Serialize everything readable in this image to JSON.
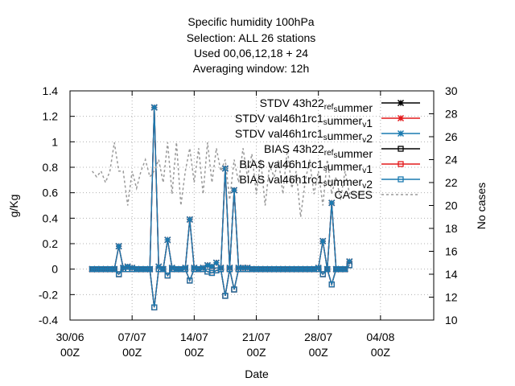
{
  "chart_data": {
    "type": "line",
    "title_lines": [
      "Specific humidity 100hPa",
      "Selection: ALL      26 stations",
      "Used  00,06,12,18  + 24",
      "Averaging window: 12h"
    ],
    "xlabel": "Date",
    "ylabel": "g/Kg",
    "y2label": "No cases",
    "xlim": [
      0,
      41
    ],
    "ylim": [
      -0.4,
      1.4
    ],
    "y2lim": [
      10,
      30
    ],
    "grid": true,
    "legend_position": "top-right",
    "x_ticks": [
      {
        "x": 0,
        "top": "30/06",
        "bottom": "00Z"
      },
      {
        "x": 7,
        "top": "07/07",
        "bottom": "00Z"
      },
      {
        "x": 14,
        "top": "14/07",
        "bottom": "00Z"
      },
      {
        "x": 21,
        "top": "21/07",
        "bottom": "00Z"
      },
      {
        "x": 28,
        "top": "28/07",
        "bottom": "00Z"
      },
      {
        "x": 35,
        "top": "04/08",
        "bottom": "00Z"
      }
    ],
    "y_ticks": [
      "-0.4",
      "-0.2",
      "0",
      "0.2",
      "0.4",
      "0.6",
      "0.8",
      "1",
      "1.2",
      "1.4"
    ],
    "y2_ticks": [
      "10",
      "12",
      "14",
      "16",
      "18",
      "20",
      "22",
      "24",
      "26",
      "28",
      "30"
    ],
    "series": [
      {
        "name": "STDV 43h22_ref_summer",
        "legend_parts": [
          [
            "STDV 43h22",
            ""
          ],
          [
            "ref",
            "sub"
          ],
          [
            "",
            ""
          ],
          [
            "s",
            "sub"
          ],
          [
            "ummer",
            ""
          ]
        ],
        "axis": "y1",
        "color": "#000000",
        "marker": "star",
        "dash": "",
        "x": [
          2.5,
          3,
          3.5,
          4,
          4.5,
          5,
          5.5,
          6,
          6.5,
          7,
          7.5,
          8,
          8.5,
          9,
          9.5,
          10,
          10.5,
          11,
          11.5,
          12,
          12.5,
          13,
          13.5,
          14,
          14.5,
          15,
          15.5,
          16,
          16.5,
          17,
          17.5,
          18,
          18.5,
          19,
          19.5,
          20,
          20.5,
          21,
          21.5,
          22,
          22.5,
          23,
          23.5,
          24,
          24.5,
          25,
          25.5,
          26,
          26.5,
          27,
          27.5,
          28,
          28.5,
          29,
          29.5,
          30,
          30.5,
          31,
          31.5
        ],
        "y": [
          0,
          0,
          0,
          0,
          0,
          0,
          0.18,
          0.01,
          0.02,
          0.01,
          0,
          0,
          0,
          0,
          1.27,
          0.02,
          0,
          0.23,
          0.01,
          0,
          0,
          0.01,
          0.39,
          0.01,
          0,
          0.01,
          0.03,
          0.02,
          0.05,
          0.01,
          0.79,
          0.01,
          0.62,
          0.01,
          0.01,
          0.01,
          0,
          0,
          0,
          0,
          0,
          0,
          0,
          0,
          0,
          0,
          0,
          0,
          0,
          0,
          0,
          0.01,
          0.22,
          0,
          0.52,
          0,
          0,
          0,
          0.06
        ]
      },
      {
        "name": "STDV val46h1rc1_summer_v1",
        "legend_parts": [
          [
            "STDV val46h1rc1",
            ""
          ],
          [
            "s",
            "sub"
          ],
          [
            "ummer",
            ""
          ],
          [
            "v",
            "sub"
          ],
          [
            "1",
            ""
          ]
        ],
        "axis": "y1",
        "color": "#e41a1c",
        "marker": "star",
        "dash": "",
        "x": [
          2.5,
          3,
          3.5,
          4,
          4.5,
          5,
          5.5,
          6,
          6.5,
          7,
          7.5,
          8,
          8.5,
          9,
          9.5,
          10,
          10.5,
          11,
          11.5,
          12,
          12.5,
          13,
          13.5,
          14,
          14.5,
          15,
          15.5,
          16,
          16.5,
          17,
          17.5,
          18,
          18.5,
          19,
          19.5,
          20,
          20.5,
          21,
          21.5,
          22,
          22.5,
          23,
          23.5,
          24,
          24.5,
          25,
          25.5,
          26,
          26.5,
          27,
          27.5,
          28,
          28.5,
          29,
          29.5,
          30,
          30.5,
          31,
          31.5
        ],
        "y": [
          0,
          0,
          0,
          0,
          0,
          0,
          0.18,
          0.01,
          0.02,
          0.01,
          0,
          0,
          0,
          0,
          1.27,
          0.02,
          0,
          0.23,
          0.01,
          0,
          0,
          0.01,
          0.39,
          0.01,
          0,
          0.01,
          0.03,
          0.02,
          0.05,
          0.01,
          0.79,
          0.01,
          0.62,
          0.01,
          0.01,
          0.01,
          0,
          0,
          0,
          0,
          0,
          0,
          0,
          0,
          0,
          0,
          0,
          0,
          0,
          0,
          0,
          0.01,
          0.22,
          0,
          0.52,
          0,
          0,
          0,
          0.06
        ]
      },
      {
        "name": "STDV val46h1rc1_summer_v2",
        "legend_parts": [
          [
            "STDV val46h1rc1",
            ""
          ],
          [
            "s",
            "sub"
          ],
          [
            "ummer",
            ""
          ],
          [
            "v",
            "sub"
          ],
          [
            "2",
            ""
          ]
        ],
        "axis": "y1",
        "color": "#1a7ab0",
        "marker": "star",
        "dash": "",
        "x": [
          2.5,
          3,
          3.5,
          4,
          4.5,
          5,
          5.5,
          6,
          6.5,
          7,
          7.5,
          8,
          8.5,
          9,
          9.5,
          10,
          10.5,
          11,
          11.5,
          12,
          12.5,
          13,
          13.5,
          14,
          14.5,
          15,
          15.5,
          16,
          16.5,
          17,
          17.5,
          18,
          18.5,
          19,
          19.5,
          20,
          20.5,
          21,
          21.5,
          22,
          22.5,
          23,
          23.5,
          24,
          24.5,
          25,
          25.5,
          26,
          26.5,
          27,
          27.5,
          28,
          28.5,
          29,
          29.5,
          30,
          30.5,
          31,
          31.5
        ],
        "y": [
          0,
          0,
          0,
          0,
          0,
          0,
          0.18,
          0.01,
          0.02,
          0.01,
          0,
          0,
          0,
          0,
          1.27,
          0.02,
          0,
          0.23,
          0.01,
          0,
          0,
          0.01,
          0.39,
          0.01,
          0,
          0.01,
          0.03,
          0.02,
          0.05,
          0.01,
          0.79,
          0.01,
          0.62,
          0.01,
          0.01,
          0.01,
          0,
          0,
          0,
          0,
          0,
          0,
          0,
          0,
          0,
          0,
          0,
          0,
          0,
          0,
          0,
          0.01,
          0.22,
          0,
          0.52,
          0,
          0,
          0,
          0.06
        ]
      },
      {
        "name": "BIAS 43h22_ref_summer",
        "legend_parts": [
          [
            "BIAS 43h22",
            ""
          ],
          [
            "ref",
            "sub"
          ],
          [
            "",
            ""
          ],
          [
            "s",
            "sub"
          ],
          [
            "ummer",
            ""
          ]
        ],
        "axis": "y1",
        "color": "#000000",
        "marker": "square",
        "dash": "",
        "x": [
          2.5,
          3,
          3.5,
          4,
          4.5,
          5,
          5.5,
          6,
          6.5,
          7,
          7.5,
          8,
          8.5,
          9,
          9.5,
          10,
          10.5,
          11,
          11.5,
          12,
          12.5,
          13,
          13.5,
          14,
          14.5,
          15,
          15.5,
          16,
          16.5,
          17,
          17.5,
          18,
          18.5,
          19,
          19.5,
          20,
          20.5,
          21,
          21.5,
          22,
          22.5,
          23,
          23.5,
          24,
          24.5,
          25,
          25.5,
          26,
          26.5,
          27,
          27.5,
          28,
          28.5,
          29,
          29.5,
          30,
          30.5,
          31,
          31.5
        ],
        "y": [
          0,
          0,
          0,
          0,
          0,
          0,
          -0.04,
          0,
          0,
          0,
          0,
          0,
          0,
          0,
          -0.3,
          0,
          0,
          -0.05,
          0,
          0,
          0,
          0,
          -0.09,
          0,
          0,
          0,
          -0.02,
          -0.03,
          -0.01,
          0,
          -0.21,
          0,
          -0.16,
          0,
          0,
          0,
          0,
          0,
          0,
          0,
          0,
          0,
          0,
          0,
          0,
          0,
          0,
          0,
          0,
          0,
          0,
          0,
          -0.04,
          0,
          -0.12,
          0,
          0,
          0,
          0.03
        ]
      },
      {
        "name": "BIAS val46h1rc1_summer_v1",
        "legend_parts": [
          [
            "BIAS val46h1rc1",
            ""
          ],
          [
            "s",
            "sub"
          ],
          [
            "ummer",
            ""
          ],
          [
            "v",
            "sub"
          ],
          [
            "1",
            ""
          ]
        ],
        "axis": "y1",
        "color": "#e41a1c",
        "marker": "square",
        "dash": "",
        "x": [
          2.5,
          3,
          3.5,
          4,
          4.5,
          5,
          5.5,
          6,
          6.5,
          7,
          7.5,
          8,
          8.5,
          9,
          9.5,
          10,
          10.5,
          11,
          11.5,
          12,
          12.5,
          13,
          13.5,
          14,
          14.5,
          15,
          15.5,
          16,
          16.5,
          17,
          17.5,
          18,
          18.5,
          19,
          19.5,
          20,
          20.5,
          21,
          21.5,
          22,
          22.5,
          23,
          23.5,
          24,
          24.5,
          25,
          25.5,
          26,
          26.5,
          27,
          27.5,
          28,
          28.5,
          29,
          29.5,
          30,
          30.5,
          31,
          31.5
        ],
        "y": [
          0,
          0,
          0,
          0,
          0,
          0,
          -0.04,
          0,
          0,
          0,
          0,
          0,
          0,
          0,
          -0.3,
          0,
          0,
          -0.05,
          0,
          0,
          0,
          0,
          -0.09,
          0,
          0,
          0,
          -0.02,
          -0.03,
          -0.01,
          0,
          -0.21,
          0,
          -0.16,
          0,
          0,
          0,
          0,
          0,
          0,
          0,
          0,
          0,
          0,
          0,
          0,
          0,
          0,
          0,
          0,
          0,
          0,
          0,
          -0.04,
          0,
          -0.12,
          0,
          0,
          0,
          0.03
        ]
      },
      {
        "name": "BIAS val46h1rc1_summer_v2",
        "legend_parts": [
          [
            "BIAS val46h1rc1",
            ""
          ],
          [
            "s",
            "sub"
          ],
          [
            "ummer",
            ""
          ],
          [
            "v",
            "sub"
          ],
          [
            "2",
            ""
          ]
        ],
        "axis": "y1",
        "color": "#1a7ab0",
        "marker": "square",
        "dash": "",
        "x": [
          2.5,
          3,
          3.5,
          4,
          4.5,
          5,
          5.5,
          6,
          6.5,
          7,
          7.5,
          8,
          8.5,
          9,
          9.5,
          10,
          10.5,
          11,
          11.5,
          12,
          12.5,
          13,
          13.5,
          14,
          14.5,
          15,
          15.5,
          16,
          16.5,
          17,
          17.5,
          18,
          18.5,
          19,
          19.5,
          20,
          20.5,
          21,
          21.5,
          22,
          22.5,
          23,
          23.5,
          24,
          24.5,
          25,
          25.5,
          26,
          26.5,
          27,
          27.5,
          28,
          28.5,
          29,
          29.5,
          30,
          30.5,
          31,
          31.5
        ],
        "y": [
          0,
          0,
          0,
          0,
          0,
          0,
          -0.04,
          0,
          0,
          0,
          0,
          0,
          0,
          0,
          -0.3,
          0,
          0,
          -0.05,
          0,
          0,
          0,
          0,
          -0.09,
          0,
          0,
          0,
          -0.02,
          -0.03,
          -0.01,
          0,
          -0.21,
          0,
          -0.16,
          0,
          0,
          0,
          0,
          0,
          0,
          0,
          0,
          0,
          0,
          0,
          0,
          0,
          0,
          0,
          0,
          0,
          0,
          0,
          -0.04,
          0,
          -0.12,
          0,
          0,
          0,
          0.03
        ]
      },
      {
        "name": "CASES",
        "legend_parts": [
          [
            "CASES",
            ""
          ]
        ],
        "axis": "y2",
        "color": "#999999",
        "marker": "none",
        "dash": "3,3",
        "x": [
          2.5,
          3,
          3.5,
          4,
          4.5,
          5,
          5.5,
          6,
          6.5,
          7,
          7.5,
          8,
          8.5,
          9,
          9.5,
          10,
          10.5,
          11,
          11.5,
          12,
          12.5,
          13,
          13.5,
          14,
          14.5,
          15,
          15.5,
          16,
          16.5,
          17,
          17.5,
          18,
          18.5,
          19,
          19.5,
          20,
          20.5,
          21,
          21.5,
          22,
          22.5,
          23,
          23.5,
          24,
          24.5,
          25,
          25.5,
          26,
          26.5,
          27,
          27.5,
          28,
          28.5,
          29,
          29.5,
          30,
          30.5,
          31,
          31.5,
          32,
          32.5,
          33,
          33.5
        ],
        "y": [
          23,
          22.5,
          23,
          22,
          23,
          25.5,
          23,
          23,
          20,
          23,
          21.5,
          23,
          24,
          22.5,
          23,
          24,
          22,
          25.5,
          21,
          25.5,
          20,
          23,
          25,
          22,
          25,
          21,
          25.5,
          22,
          25,
          23,
          24,
          20.5,
          24,
          22,
          25,
          22.5,
          24.5,
          21,
          24,
          20,
          23.5,
          22.5,
          24,
          21,
          25,
          21.5,
          23,
          19,
          22,
          24,
          21,
          23,
          20,
          24,
          21,
          22.5,
          20.5,
          23,
          21,
          21,
          21,
          21,
          21
        ]
      }
    ]
  }
}
